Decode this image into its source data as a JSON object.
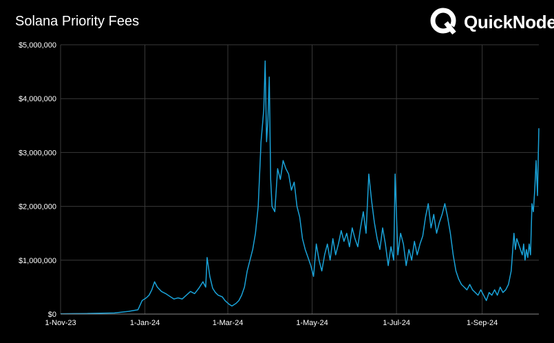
{
  "title": "Solana Priority Fees",
  "brand": {
    "name": "QuickNode",
    "icon": "quicknode-logo-icon"
  },
  "colors": {
    "background": "#000000",
    "line": "#1aa3d9",
    "grid": "#3a3a3a",
    "text": "#ffffff"
  },
  "chart_data": {
    "type": "line",
    "title": "Solana Priority Fees",
    "xlabel": "",
    "ylabel": "",
    "ylim": [
      0,
      5000000
    ],
    "xlim": [
      "2023-11-01",
      "2024-10-06"
    ],
    "grid": true,
    "legend": "none",
    "y_ticks": [
      "$0",
      "$1,000,000",
      "$2,000,000",
      "$3,000,000",
      "$4,000,000",
      "$5,000,000"
    ],
    "x_ticks": [
      {
        "label": "1-Nov-23",
        "date": "2023-11-01"
      },
      {
        "label": "1-Jan-24",
        "date": "2024-01-01"
      },
      {
        "label": "1-Mar-24",
        "date": "2024-03-01"
      },
      {
        "label": "1-May-24",
        "date": "2024-05-01"
      },
      {
        "label": "1-Jul-24",
        "date": "2024-07-01"
      },
      {
        "label": "1-Sep-24",
        "date": "2024-09-01"
      }
    ],
    "series": [
      {
        "values": [
          [
            "2023-11-01",
            5000
          ],
          [
            "2023-11-10",
            8000
          ],
          [
            "2023-11-20",
            10000
          ],
          [
            "2023-11-30",
            15000
          ],
          [
            "2023-12-10",
            20000
          ],
          [
            "2023-12-20",
            50000
          ],
          [
            "2023-12-27",
            80000
          ],
          [
            "2023-12-30",
            250000
          ],
          [
            "2024-01-02",
            300000
          ],
          [
            "2024-01-04",
            350000
          ],
          [
            "2024-01-06",
            450000
          ],
          [
            "2024-01-08",
            600000
          ],
          [
            "2024-01-10",
            500000
          ],
          [
            "2024-01-13",
            420000
          ],
          [
            "2024-01-16",
            380000
          ],
          [
            "2024-01-19",
            330000
          ],
          [
            "2024-01-22",
            280000
          ],
          [
            "2024-01-25",
            300000
          ],
          [
            "2024-01-28",
            280000
          ],
          [
            "2024-01-31",
            350000
          ],
          [
            "2024-02-03",
            420000
          ],
          [
            "2024-02-06",
            380000
          ],
          [
            "2024-02-09",
            480000
          ],
          [
            "2024-02-12",
            600000
          ],
          [
            "2024-02-14",
            500000
          ],
          [
            "2024-02-15",
            1050000
          ],
          [
            "2024-02-17",
            700000
          ],
          [
            "2024-02-19",
            480000
          ],
          [
            "2024-02-21",
            400000
          ],
          [
            "2024-02-23",
            350000
          ],
          [
            "2024-02-26",
            320000
          ],
          [
            "2024-02-28",
            250000
          ],
          [
            "2024-03-02",
            180000
          ],
          [
            "2024-03-04",
            150000
          ],
          [
            "2024-03-07",
            200000
          ],
          [
            "2024-03-09",
            250000
          ],
          [
            "2024-03-11",
            350000
          ],
          [
            "2024-03-13",
            500000
          ],
          [
            "2024-03-15",
            800000
          ],
          [
            "2024-03-17",
            1000000
          ],
          [
            "2024-03-19",
            1200000
          ],
          [
            "2024-03-21",
            1500000
          ],
          [
            "2024-03-23",
            2000000
          ],
          [
            "2024-03-25",
            3200000
          ],
          [
            "2024-03-27",
            3800000
          ],
          [
            "2024-03-28",
            4700000
          ],
          [
            "2024-03-29",
            3200000
          ],
          [
            "2024-03-30",
            3600000
          ],
          [
            "2024-03-31",
            4400000
          ],
          [
            "2024-04-01",
            2500000
          ],
          [
            "2024-04-02",
            2000000
          ],
          [
            "2024-04-04",
            1900000
          ],
          [
            "2024-04-06",
            2700000
          ],
          [
            "2024-04-08",
            2500000
          ],
          [
            "2024-04-10",
            2850000
          ],
          [
            "2024-04-12",
            2700000
          ],
          [
            "2024-04-14",
            2600000
          ],
          [
            "2024-04-16",
            2300000
          ],
          [
            "2024-04-18",
            2450000
          ],
          [
            "2024-04-20",
            2000000
          ],
          [
            "2024-04-22",
            1800000
          ],
          [
            "2024-04-24",
            1400000
          ],
          [
            "2024-04-26",
            1200000
          ],
          [
            "2024-04-28",
            1050000
          ],
          [
            "2024-04-30",
            900000
          ],
          [
            "2024-05-02",
            700000
          ],
          [
            "2024-05-04",
            1300000
          ],
          [
            "2024-05-06",
            1000000
          ],
          [
            "2024-05-08",
            800000
          ],
          [
            "2024-05-10",
            1100000
          ],
          [
            "2024-05-12",
            1300000
          ],
          [
            "2024-05-14",
            1000000
          ],
          [
            "2024-05-16",
            1400000
          ],
          [
            "2024-05-18",
            1100000
          ],
          [
            "2024-05-20",
            1300000
          ],
          [
            "2024-05-22",
            1550000
          ],
          [
            "2024-05-24",
            1350000
          ],
          [
            "2024-05-26",
            1500000
          ],
          [
            "2024-05-28",
            1250000
          ],
          [
            "2024-05-30",
            1600000
          ],
          [
            "2024-06-01",
            1400000
          ],
          [
            "2024-06-03",
            1250000
          ],
          [
            "2024-06-05",
            1600000
          ],
          [
            "2024-06-07",
            1900000
          ],
          [
            "2024-06-09",
            1500000
          ],
          [
            "2024-06-11",
            2600000
          ],
          [
            "2024-06-13",
            2100000
          ],
          [
            "2024-06-15",
            1700000
          ],
          [
            "2024-06-17",
            1400000
          ],
          [
            "2024-06-19",
            1200000
          ],
          [
            "2024-06-21",
            1600000
          ],
          [
            "2024-06-23",
            1300000
          ],
          [
            "2024-06-25",
            900000
          ],
          [
            "2024-06-27",
            1250000
          ],
          [
            "2024-06-29",
            1000000
          ],
          [
            "2024-06-30",
            2600000
          ],
          [
            "2024-07-02",
            1100000
          ],
          [
            "2024-07-04",
            1500000
          ],
          [
            "2024-07-06",
            1300000
          ],
          [
            "2024-07-08",
            900000
          ],
          [
            "2024-07-10",
            1200000
          ],
          [
            "2024-07-12",
            1000000
          ],
          [
            "2024-07-14",
            1350000
          ],
          [
            "2024-07-16",
            1100000
          ],
          [
            "2024-07-18",
            1300000
          ],
          [
            "2024-07-20",
            1450000
          ],
          [
            "2024-07-22",
            1800000
          ],
          [
            "2024-07-24",
            2050000
          ],
          [
            "2024-07-26",
            1600000
          ],
          [
            "2024-07-28",
            1850000
          ],
          [
            "2024-07-30",
            1500000
          ],
          [
            "2024-08-01",
            1700000
          ],
          [
            "2024-08-03",
            1850000
          ],
          [
            "2024-08-05",
            2050000
          ],
          [
            "2024-08-07",
            1800000
          ],
          [
            "2024-08-09",
            1500000
          ],
          [
            "2024-08-11",
            1100000
          ],
          [
            "2024-08-13",
            800000
          ],
          [
            "2024-08-15",
            650000
          ],
          [
            "2024-08-17",
            550000
          ],
          [
            "2024-08-19",
            500000
          ],
          [
            "2024-08-21",
            450000
          ],
          [
            "2024-08-23",
            550000
          ],
          [
            "2024-08-25",
            450000
          ],
          [
            "2024-08-27",
            400000
          ],
          [
            "2024-08-29",
            350000
          ],
          [
            "2024-08-31",
            450000
          ],
          [
            "2024-09-02",
            350000
          ],
          [
            "2024-09-04",
            250000
          ],
          [
            "2024-09-06",
            400000
          ],
          [
            "2024-09-08",
            350000
          ],
          [
            "2024-09-10",
            450000
          ],
          [
            "2024-09-12",
            350000
          ],
          [
            "2024-09-14",
            500000
          ],
          [
            "2024-09-16",
            400000
          ],
          [
            "2024-09-18",
            450000
          ],
          [
            "2024-09-20",
            550000
          ],
          [
            "2024-09-22",
            800000
          ],
          [
            "2024-09-24",
            1500000
          ],
          [
            "2024-09-25",
            1200000
          ],
          [
            "2024-09-26",
            1400000
          ],
          [
            "2024-09-28",
            1250000
          ],
          [
            "2024-09-30",
            1100000
          ],
          [
            "2024-10-01",
            1300000
          ],
          [
            "2024-10-02",
            1000000
          ],
          [
            "2024-10-03",
            1200000
          ],
          [
            "2024-10-04",
            1050000
          ],
          [
            "2024-10-05",
            1300000
          ],
          [
            "2024-10-06",
            1100000
          ],
          [
            "2024-10-07",
            2050000
          ],
          [
            "2024-10-08",
            1900000
          ],
          [
            "2024-10-09",
            2300000
          ],
          [
            "2024-10-10",
            2850000
          ],
          [
            "2024-10-11",
            2200000
          ],
          [
            "2024-10-12",
            3450000
          ]
        ]
      }
    ]
  }
}
